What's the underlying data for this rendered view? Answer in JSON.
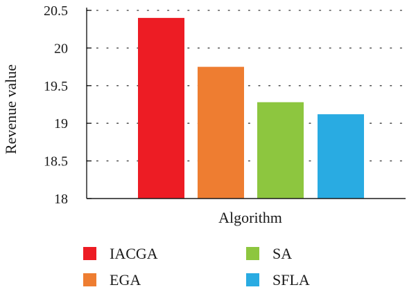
{
  "chart_data": {
    "type": "bar",
    "categories": [
      "IACGA",
      "EGA",
      "SA",
      "SFLA"
    ],
    "values": [
      20.4,
      19.75,
      19.28,
      19.12
    ],
    "colors": [
      "#ed1c24",
      "#ee7d31",
      "#8dc63f",
      "#29abe2"
    ],
    "xlabel": "Algorithm",
    "ylabel": "Revenue value",
    "ylim": [
      18,
      20.5
    ],
    "yticks": [
      18,
      18.5,
      19,
      19.5,
      20,
      20.5
    ],
    "ytick_labels": [
      "18",
      "18.5",
      "19",
      "19.5",
      "20",
      "20.5"
    ],
    "grid": "horizontal dotted",
    "legend": {
      "placement": "bottom",
      "columns": 2,
      "entries": [
        "IACGA",
        "EGA",
        "SA",
        "SFLA"
      ]
    }
  }
}
